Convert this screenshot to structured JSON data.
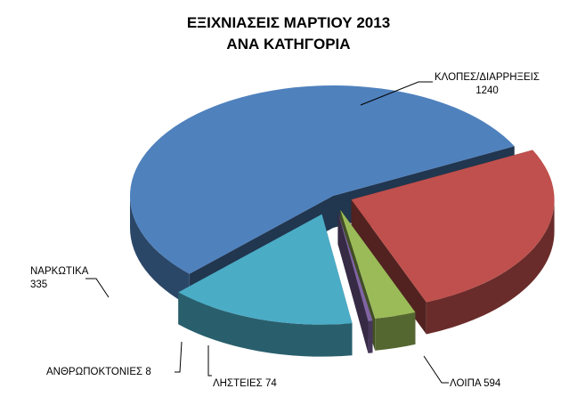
{
  "chart_data": {
    "type": "pie",
    "title": [
      "ΕΞΙΧΝΙΑΣΕΙΣ ΜΑΡΤΙΟΥ 2013",
      "ΑΝΑ ΚΑΤΗΓΟΡΙΑ"
    ],
    "slices": [
      {
        "label": "ΚΛΟΠΕΣ/ΔΙΑΡΡΗΞΕΙΣ",
        "value": 1240,
        "value_text": "1240",
        "color": "#4F81BD"
      },
      {
        "label": "ΛΟΙΠΑ",
        "value": 594,
        "value_text": "594",
        "color": "#C0504D"
      },
      {
        "label": "ΛΗΣΤΕΙΕΣ",
        "value": 74,
        "value_text": "74",
        "color": "#9BBB59"
      },
      {
        "label": "ΑΝΘΡΩΠΟΚΤΟΝΙΕΣ",
        "value": 8,
        "value_text": "8",
        "color": "#8064A2"
      },
      {
        "label": "ΝΑΡΚΩΤΙΚΑ",
        "value": 335,
        "value_text": "335",
        "color": "#4BACC6"
      }
    ]
  }
}
